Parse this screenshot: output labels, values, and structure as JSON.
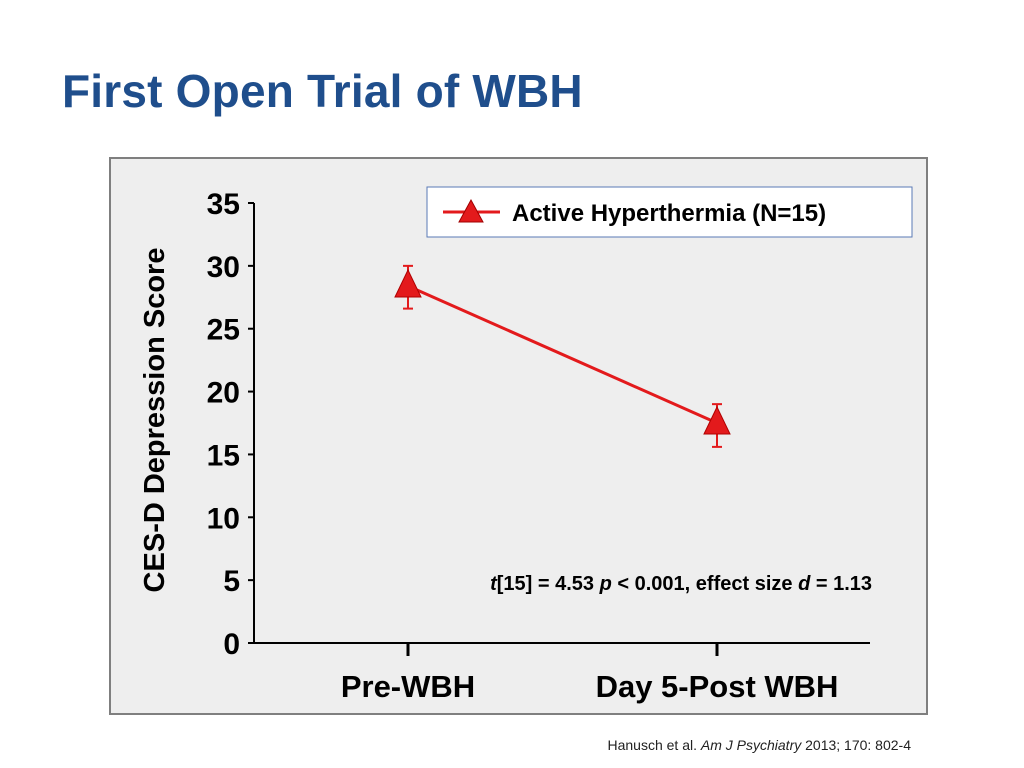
{
  "slide": {
    "title": "First Open Trial of WBH"
  },
  "chart_data": {
    "type": "line",
    "categories": [
      "Pre-WBH",
      "Day 5-Post WBH"
    ],
    "series": [
      {
        "name": "Active Hyperthermia (N=15)",
        "values": [
          28.4,
          17.5
        ],
        "error_upper": [
          30.0,
          19.0
        ],
        "error_lower": [
          26.6,
          15.6
        ],
        "color": "#e31a1c",
        "marker": "triangle"
      }
    ],
    "ylabel": "CES-D Depression Score",
    "xlabel": "",
    "ylim": [
      0,
      35
    ],
    "yticks": [
      "0",
      "5",
      "10",
      "15",
      "20",
      "25",
      "30",
      "35"
    ],
    "legend_position": "top-right",
    "grid": false,
    "annotation": {
      "t_symbol": "t",
      "t_value": "[15] = 4.53 ",
      "p_symbol": "p",
      "p_text": " < 0.001, effect size ",
      "d_symbol": "d",
      "d_text": " = 1.13"
    }
  },
  "citation": {
    "authors": "Hanusch et al. ",
    "journal": "Am J Psychiatry",
    "details": " 2013; 170: 802-4"
  }
}
